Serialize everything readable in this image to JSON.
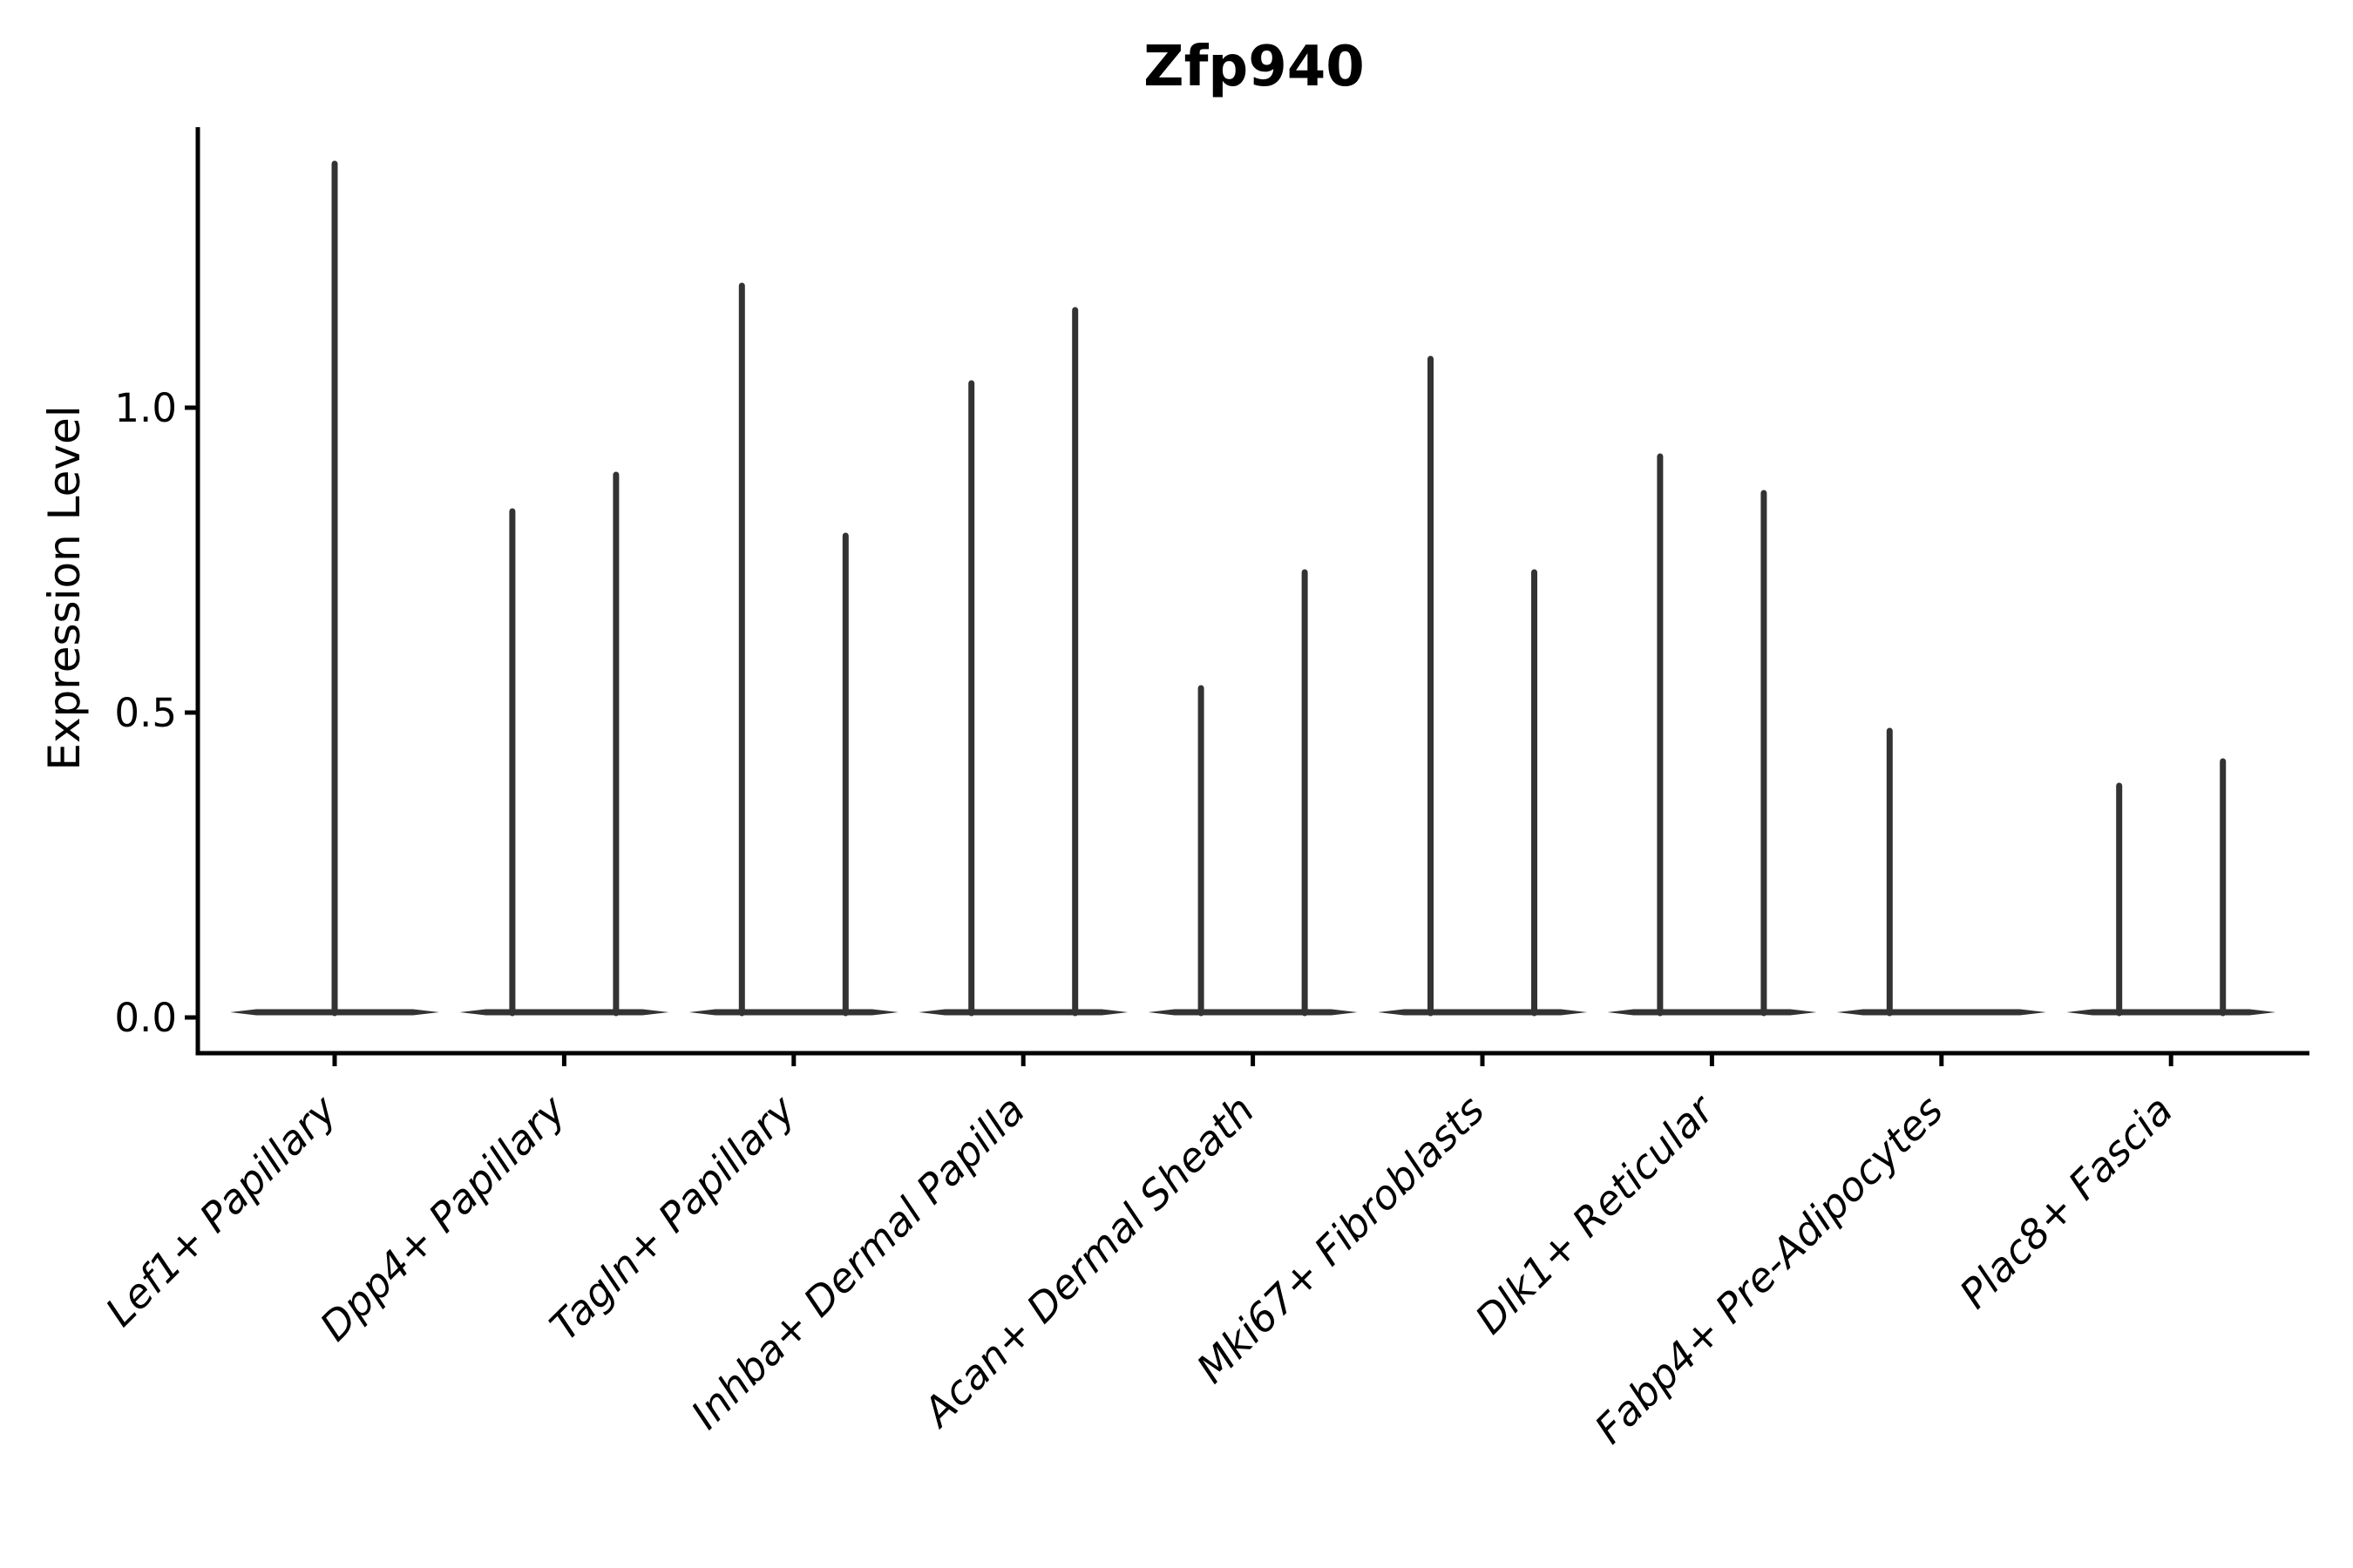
{
  "chart_data": {
    "type": "violin",
    "title": "Zfp940",
    "xlabel": "",
    "ylabel": "Expression Level",
    "ylim": [
      0,
      1.46
    ],
    "grid": false,
    "legend": null,
    "yticks": {
      "values": [
        0.0,
        0.5,
        1.0
      ],
      "labels": [
        "0.0",
        "0.5",
        "1.0"
      ]
    },
    "categories": [
      "Lef1+ Papillary",
      "Dpp4+ Papillary",
      "Tagln+ Papillary",
      "Inhba+ Dermal Papilla",
      "Acan+ Dermal Sheath",
      "Mki67+ Fibroblasts",
      "Dlk1+ Reticular",
      "Fabp4+ Pre-Adipocytes",
      "Plac8+ Fascia"
    ],
    "baseline_value": 0,
    "violins": [
      {
        "category": "Lef1+ Papillary",
        "tails": [
          {
            "position": "center",
            "max": 1.4
          }
        ]
      },
      {
        "category": "Dpp4+ Papillary",
        "tails": [
          {
            "position": "left",
            "max": 0.83
          },
          {
            "position": "right",
            "max": 0.89
          }
        ]
      },
      {
        "category": "Tagln+ Papillary",
        "tails": [
          {
            "position": "left",
            "max": 1.2
          },
          {
            "position": "right",
            "max": 0.79
          }
        ]
      },
      {
        "category": "Inhba+ Dermal Papilla",
        "tails": [
          {
            "position": "left",
            "max": 1.04
          },
          {
            "position": "right",
            "max": 1.16
          }
        ]
      },
      {
        "category": "Acan+ Dermal Sheath",
        "tails": [
          {
            "position": "left",
            "max": 0.54
          },
          {
            "position": "right",
            "max": 0.73
          }
        ]
      },
      {
        "category": "Mki67+ Fibroblasts",
        "tails": [
          {
            "position": "left",
            "max": 1.08
          },
          {
            "position": "right",
            "max": 0.73
          }
        ]
      },
      {
        "category": "Dlk1+ Reticular",
        "tails": [
          {
            "position": "left",
            "max": 0.92
          },
          {
            "position": "right",
            "max": 0.86
          }
        ]
      },
      {
        "category": "Fabp4+ Pre-Adipocytes",
        "tails": [
          {
            "position": "left",
            "max": 0.47
          }
        ]
      },
      {
        "category": "Plac8+ Fascia",
        "tails": [
          {
            "position": "left",
            "max": 0.38
          },
          {
            "position": "right",
            "max": 0.42
          }
        ]
      }
    ],
    "colors": {
      "violin_line": "#333333",
      "axis": "#000000",
      "text": "#000000"
    }
  }
}
